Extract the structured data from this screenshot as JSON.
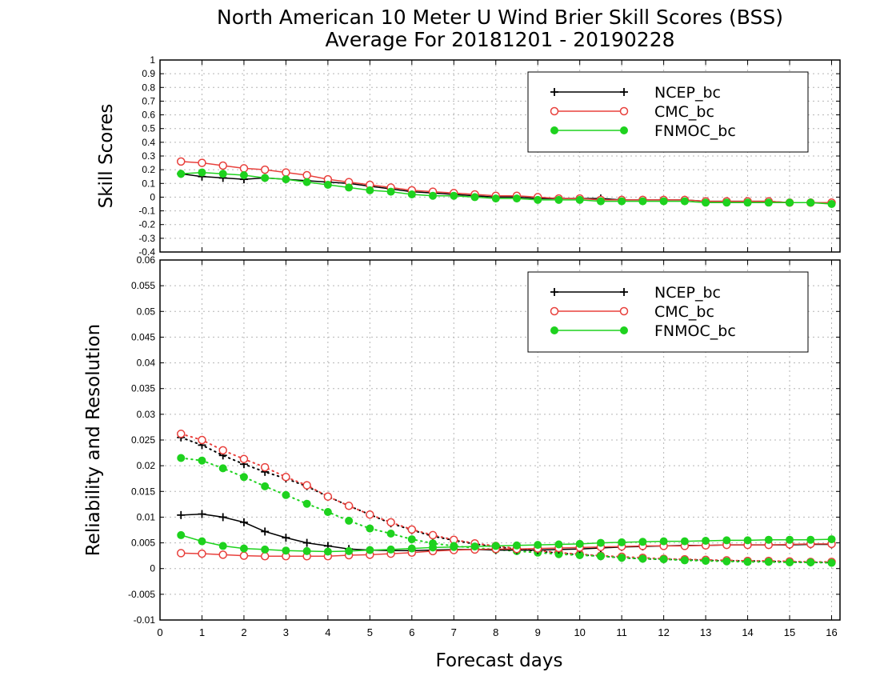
{
  "chart_data": {
    "title": "North American 10 Meter U Wind Brier Skill Scores (BSS)",
    "subtitle": "Average For 20181201 - 20190228",
    "xlabel": "Forecast days",
    "x_ticks": [
      "0",
      "1",
      "2",
      "3",
      "4",
      "5",
      "6",
      "7",
      "8",
      "9",
      "10",
      "11",
      "12",
      "13",
      "14",
      "15",
      "16"
    ],
    "xlim": [
      0,
      16.2
    ],
    "colors": {
      "NCEP_bc": "#000000",
      "CMC_bc": "#e8403c",
      "FNMOC_bc": "#1ed21e"
    },
    "panels": [
      {
        "id": "bss",
        "type": "line",
        "ylabel": "Skill Scores",
        "ylim": [
          -0.4,
          1.0
        ],
        "y_ticks": [
          "1",
          "0.9",
          "0.8",
          "0.7",
          "0.6",
          "0.5",
          "0.4",
          "0.3",
          "0.2",
          "0.1",
          "0",
          "-0.1",
          "-0.2",
          "-0.3",
          "-0.4"
        ],
        "y_tick_values": [
          1,
          0.9,
          0.8,
          0.7,
          0.6,
          0.5,
          0.4,
          0.3,
          0.2,
          0.1,
          0,
          -0.1,
          -0.2,
          -0.3,
          -0.4
        ],
        "legend": [
          "NCEP_bc",
          "CMC_bc",
          "FNMOC_bc"
        ],
        "legend_position": "top-right",
        "grid": true,
        "x": [
          0.5,
          1,
          1.5,
          2,
          2.5,
          3,
          3.5,
          4,
          4.5,
          5,
          5.5,
          6,
          6.5,
          7,
          7.5,
          8,
          8.5,
          9,
          9.5,
          10,
          10.5,
          11,
          11.5,
          12,
          12.5,
          13,
          13.5,
          14,
          14.5,
          15,
          15.5,
          16
        ],
        "series": [
          {
            "name": "NCEP_bc",
            "marker": "plus",
            "style": "solid",
            "values": [
              0.17,
              0.15,
              0.14,
              0.13,
              0.14,
              0.13,
              0.12,
              0.11,
              0.1,
              0.08,
              0.06,
              0.04,
              0.03,
              0.02,
              0.01,
              0.0,
              0.0,
              -0.01,
              -0.01,
              -0.01,
              -0.01,
              -0.02,
              -0.02,
              -0.02,
              -0.02,
              -0.03,
              -0.03,
              -0.03,
              -0.03,
              -0.04,
              -0.04,
              -0.04
            ]
          },
          {
            "name": "CMC_bc",
            "marker": "open-circle",
            "style": "solid",
            "values": [
              0.26,
              0.25,
              0.23,
              0.21,
              0.2,
              0.18,
              0.16,
              0.13,
              0.11,
              0.09,
              0.07,
              0.05,
              0.04,
              0.03,
              0.02,
              0.01,
              0.01,
              0.0,
              -0.01,
              -0.01,
              -0.02,
              -0.02,
              -0.02,
              -0.02,
              -0.02,
              -0.03,
              -0.03,
              -0.03,
              -0.03,
              -0.04,
              -0.04,
              -0.04
            ]
          },
          {
            "name": "FNMOC_bc",
            "marker": "filled-circle",
            "style": "solid",
            "values": [
              0.17,
              0.18,
              0.17,
              0.16,
              0.14,
              0.13,
              0.11,
              0.09,
              0.07,
              0.05,
              0.04,
              0.02,
              0.01,
              0.01,
              0.0,
              -0.01,
              -0.01,
              -0.02,
              -0.02,
              -0.02,
              -0.03,
              -0.03,
              -0.03,
              -0.03,
              -0.03,
              -0.04,
              -0.04,
              -0.04,
              -0.04,
              -0.04,
              -0.04,
              -0.05
            ]
          }
        ]
      },
      {
        "id": "rel-res",
        "type": "line",
        "ylabel": "Reliability and Resolution",
        "ylim": [
          -0.01,
          0.06
        ],
        "y_ticks": [
          "0.06",
          "0.055",
          "0.05",
          "0.045",
          "0.04",
          "0.035",
          "0.03",
          "0.025",
          "0.02",
          "0.015",
          "0.01",
          "0.005",
          "0",
          "-0.005",
          "-0.01"
        ],
        "y_tick_values": [
          0.06,
          0.055,
          0.05,
          0.045,
          0.04,
          0.035,
          0.03,
          0.025,
          0.02,
          0.015,
          0.01,
          0.005,
          0,
          -0.005,
          -0.01
        ],
        "legend": [
          "NCEP_bc",
          "CMC_bc",
          "FNMOC_bc"
        ],
        "legend_position": "top-right",
        "grid": true,
        "x": [
          0.5,
          1,
          1.5,
          2,
          2.5,
          3,
          3.5,
          4,
          4.5,
          5,
          5.5,
          6,
          6.5,
          7,
          7.5,
          8,
          8.5,
          9,
          9.5,
          10,
          10.5,
          11,
          11.5,
          12,
          12.5,
          13,
          13.5,
          14,
          14.5,
          15,
          15.5,
          16
        ],
        "series": [
          {
            "name": "NCEP_bc",
            "marker": "plus",
            "style": "solid",
            "group": "reliability",
            "values": [
              0.0104,
              0.0106,
              0.01,
              0.009,
              0.0072,
              0.006,
              0.005,
              0.0044,
              0.0038,
              0.0036,
              0.0035,
              0.0035,
              0.0036,
              0.0037,
              0.0037,
              0.0036,
              0.0036,
              0.0036,
              0.0037,
              0.0038,
              0.004,
              0.0042,
              0.0043,
              0.0044,
              0.0045,
              0.0045,
              0.0046,
              0.0046,
              0.0046,
              0.0046,
              0.0047,
              0.0047
            ]
          },
          {
            "name": "CMC_bc",
            "marker": "open-circle",
            "style": "solid",
            "group": "reliability",
            "values": [
              0.003,
              0.0029,
              0.0027,
              0.0025,
              0.0024,
              0.0024,
              0.0024,
              0.0024,
              0.0026,
              0.0027,
              0.0029,
              0.0031,
              0.0034,
              0.0036,
              0.0037,
              0.0038,
              0.0038,
              0.0039,
              0.004,
              0.0041,
              0.0042,
              0.0043,
              0.0044,
              0.0044,
              0.0044,
              0.0045,
              0.0046,
              0.0046,
              0.0046,
              0.0047,
              0.0048,
              0.0048
            ]
          },
          {
            "name": "FNMOC_bc",
            "marker": "filled-circle",
            "style": "solid",
            "group": "reliability",
            "values": [
              0.0065,
              0.0053,
              0.0044,
              0.0039,
              0.0037,
              0.0035,
              0.0034,
              0.0033,
              0.0034,
              0.0036,
              0.0037,
              0.0039,
              0.0041,
              0.0042,
              0.0043,
              0.0044,
              0.0045,
              0.0046,
              0.0047,
              0.0048,
              0.005,
              0.0051,
              0.0052,
              0.0053,
              0.0053,
              0.0054,
              0.0055,
              0.0055,
              0.0056,
              0.0056,
              0.0056,
              0.0057
            ]
          },
          {
            "name": "NCEP_bc",
            "marker": "plus",
            "style": "dotted",
            "group": "resolution",
            "values": [
              0.0255,
              0.024,
              0.022,
              0.0203,
              0.0188,
              0.0175,
              0.016,
              0.014,
              0.0122,
              0.0105,
              0.0088,
              0.0075,
              0.0063,
              0.0055,
              0.0048,
              0.0042,
              0.0038,
              0.0034,
              0.003,
              0.0027,
              0.0024,
              0.0021,
              0.0019,
              0.0018,
              0.0017,
              0.0016,
              0.0015,
              0.0015,
              0.0014,
              0.0013,
              0.0012,
              0.0012
            ]
          },
          {
            "name": "CMC_bc",
            "marker": "open-circle",
            "style": "dotted",
            "group": "resolution",
            "values": [
              0.0262,
              0.025,
              0.023,
              0.0213,
              0.0197,
              0.0178,
              0.0162,
              0.014,
              0.0122,
              0.0105,
              0.009,
              0.0076,
              0.0065,
              0.0056,
              0.0049,
              0.0044,
              0.0039,
              0.0035,
              0.0031,
              0.0028,
              0.0025,
              0.0023,
              0.0021,
              0.0019,
              0.0018,
              0.0017,
              0.0016,
              0.0015,
              0.0015,
              0.0014,
              0.0013,
              0.0013
            ]
          },
          {
            "name": "FNMOC_bc",
            "marker": "filled-circle",
            "style": "dotted",
            "group": "resolution",
            "values": [
              0.0215,
              0.021,
              0.0195,
              0.0178,
              0.016,
              0.0143,
              0.0126,
              0.011,
              0.0093,
              0.0078,
              0.0068,
              0.0057,
              0.0049,
              0.0044,
              0.004,
              0.0037,
              0.0034,
              0.0031,
              0.0028,
              0.0026,
              0.0024,
              0.0021,
              0.0019,
              0.0018,
              0.0016,
              0.0015,
              0.0014,
              0.0013,
              0.0013,
              0.0012,
              0.0012,
              0.0011
            ]
          }
        ]
      }
    ]
  }
}
